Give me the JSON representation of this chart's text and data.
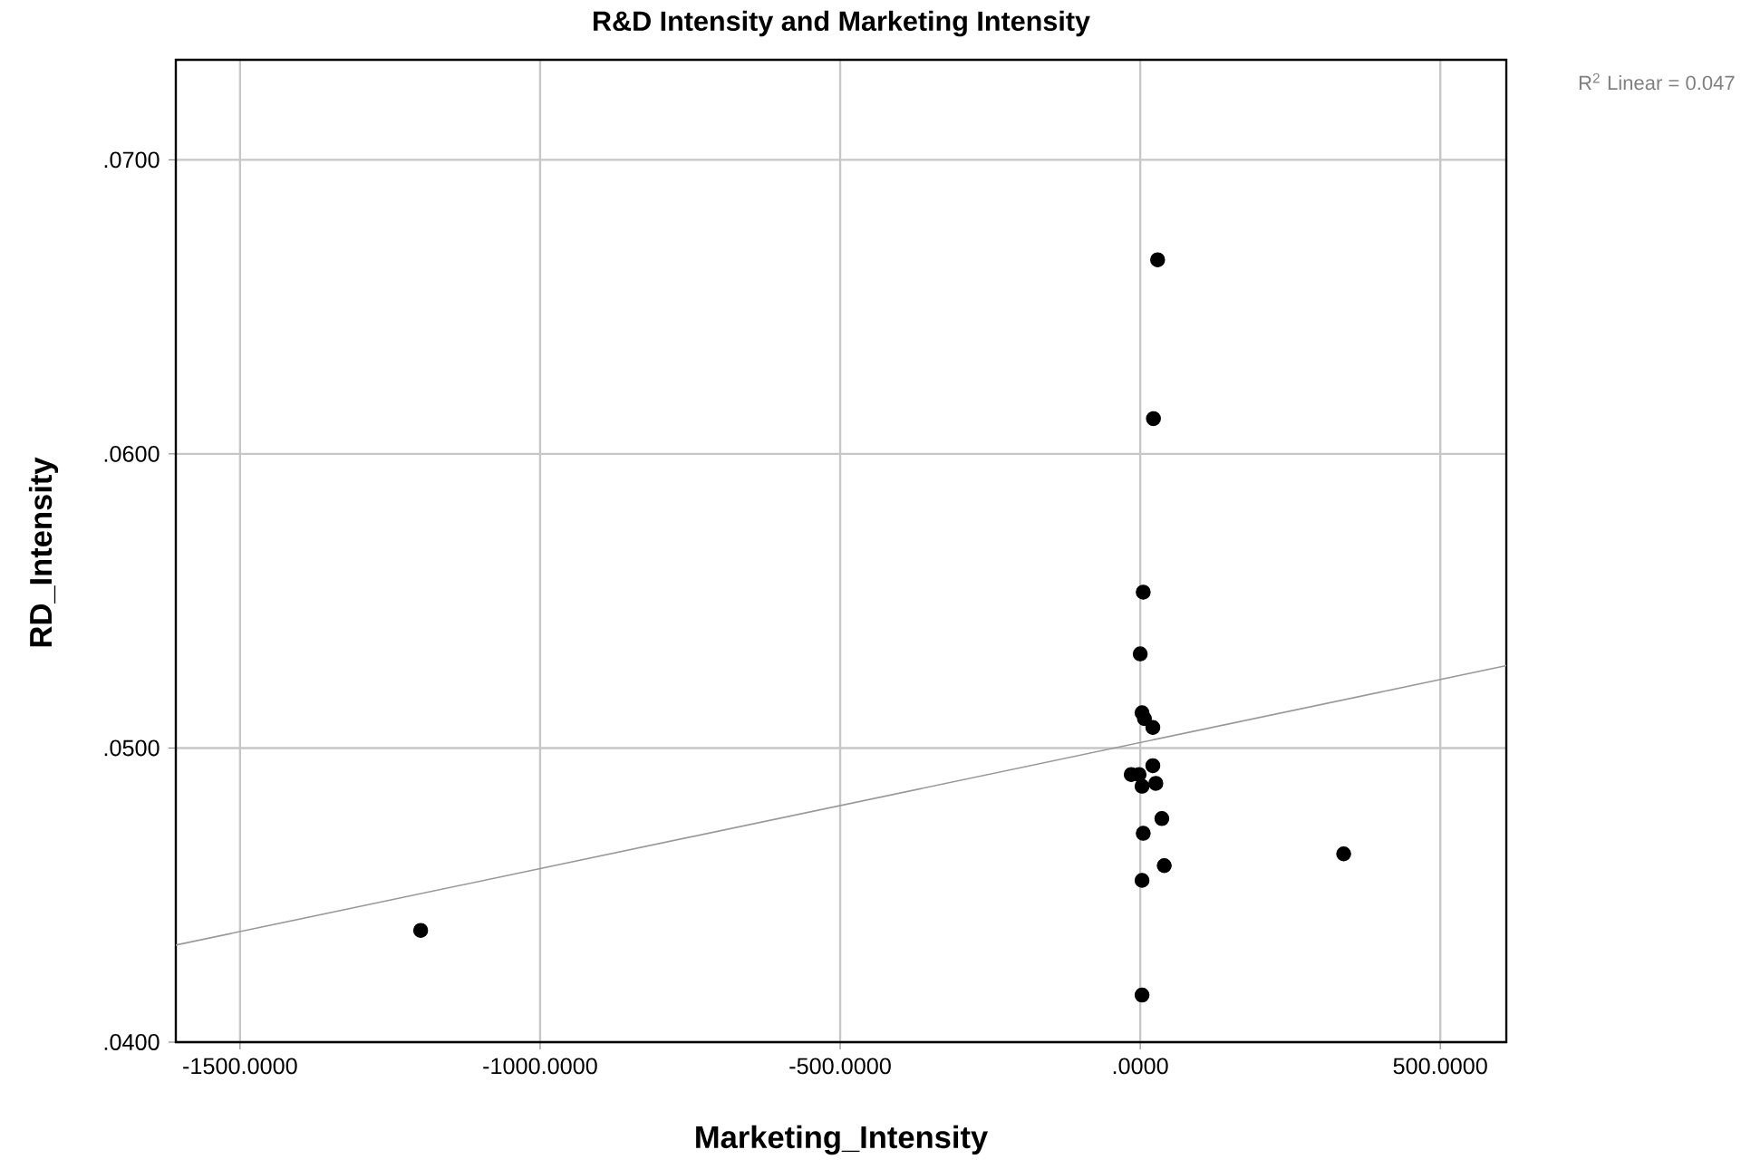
{
  "chart_data": {
    "type": "scatter",
    "title": "R&D Intensity and Marketing Intensity",
    "xlabel": "Marketing_Intensity",
    "ylabel": "RD_Intensity",
    "annotations": [
      "R$^{2}$ Linear = 0.047"
    ],
    "xlim": [
      -1607,
      610
    ],
    "ylim": [
      0.04,
      0.0734
    ],
    "xticks": [
      {
        "value": -1500,
        "label": "-1500.0000"
      },
      {
        "value": -1000,
        "label": "-1000.0000"
      },
      {
        "value": -500,
        "label": "-500.0000"
      },
      {
        "value": 0,
        "label": ".0000"
      },
      {
        "value": 500,
        "label": "500.0000"
      }
    ],
    "yticks": [
      {
        "value": 0.04,
        "label": ".0400"
      },
      {
        "value": 0.05,
        "label": ".0500"
      },
      {
        "value": 0.06,
        "label": ".0600"
      },
      {
        "value": 0.07,
        "label": ".0700"
      }
    ],
    "grid": true,
    "marker": "circle",
    "series": [
      {
        "color": "#000000",
        "x": [
          29,
          22,
          5,
          0,
          3,
          7,
          21,
          -15,
          21,
          3,
          26,
          -2,
          36,
          5,
          40,
          3,
          339,
          3,
          -1199
        ],
        "values": [
          0.0666,
          0.0612,
          0.0553,
          0.0532,
          0.0512,
          0.051,
          0.0507,
          0.0491,
          0.0494,
          0.0487,
          0.0488,
          0.0491,
          0.0476,
          0.0471,
          0.046,
          0.0455,
          0.0464,
          0.0416,
          0.0438
        ]
      },
      {
        "type": "line",
        "color": "#999999",
        "marker": "none",
        "x": [
          -1607,
          610
        ],
        "values": [
          0.0433,
          0.0528
        ]
      }
    ]
  }
}
